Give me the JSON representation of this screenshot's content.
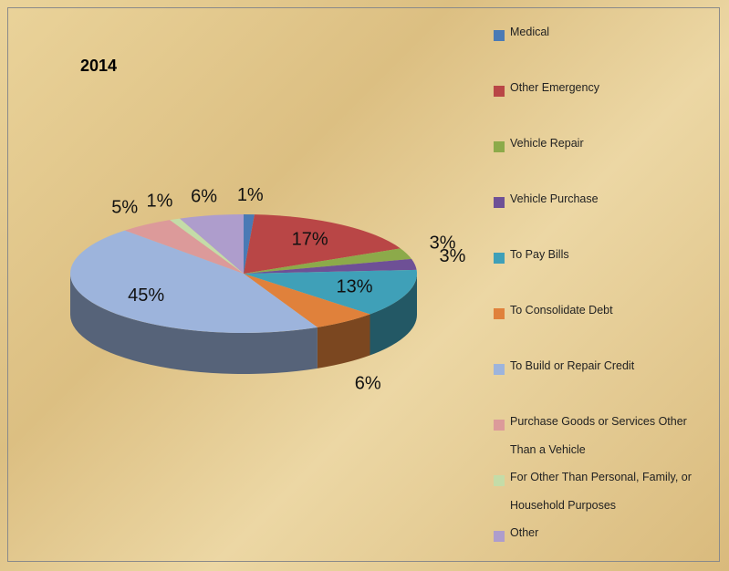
{
  "chart_data": {
    "type": "pie",
    "title": "2014",
    "categories": [
      "Medical",
      "Other Emergency",
      "Vehicle Repair",
      "Vehicle Purchase",
      "To Pay Bills",
      "To Consolidate Debt",
      "To Build or Repair Credit",
      "Purchase Goods or Services Other Than a Vehicle",
      "For Other Than Personal, Family, or Household Purposes",
      "Other"
    ],
    "values": [
      1,
      17,
      3,
      3,
      13,
      6,
      45,
      5,
      1,
      6
    ],
    "value_labels": [
      "1%",
      "17%",
      "3%",
      "3%",
      "13%",
      "6%",
      "45%",
      "5%",
      "1%",
      "6%"
    ],
    "colors": [
      "#4a7ab5",
      "#b94646",
      "#8caa4a",
      "#6e5096",
      "#3fa0b8",
      "#e0813b",
      "#9db4dc",
      "#dc9a9a",
      "#c4dca8",
      "#ae9dcc"
    ],
    "legend": "right"
  }
}
